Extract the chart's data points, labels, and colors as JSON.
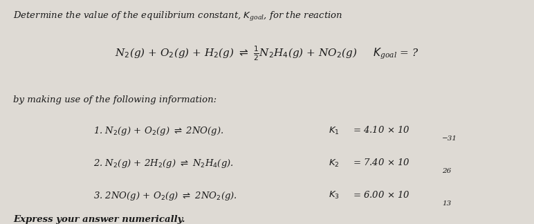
{
  "bg_color": "#dedad4",
  "text_color": "#1a1a1a",
  "font_size_title": 9.5,
  "font_size_eq": 11.0,
  "font_size_body": 9.5,
  "font_size_rxn": 9.5,
  "font_size_exp": 7.5
}
